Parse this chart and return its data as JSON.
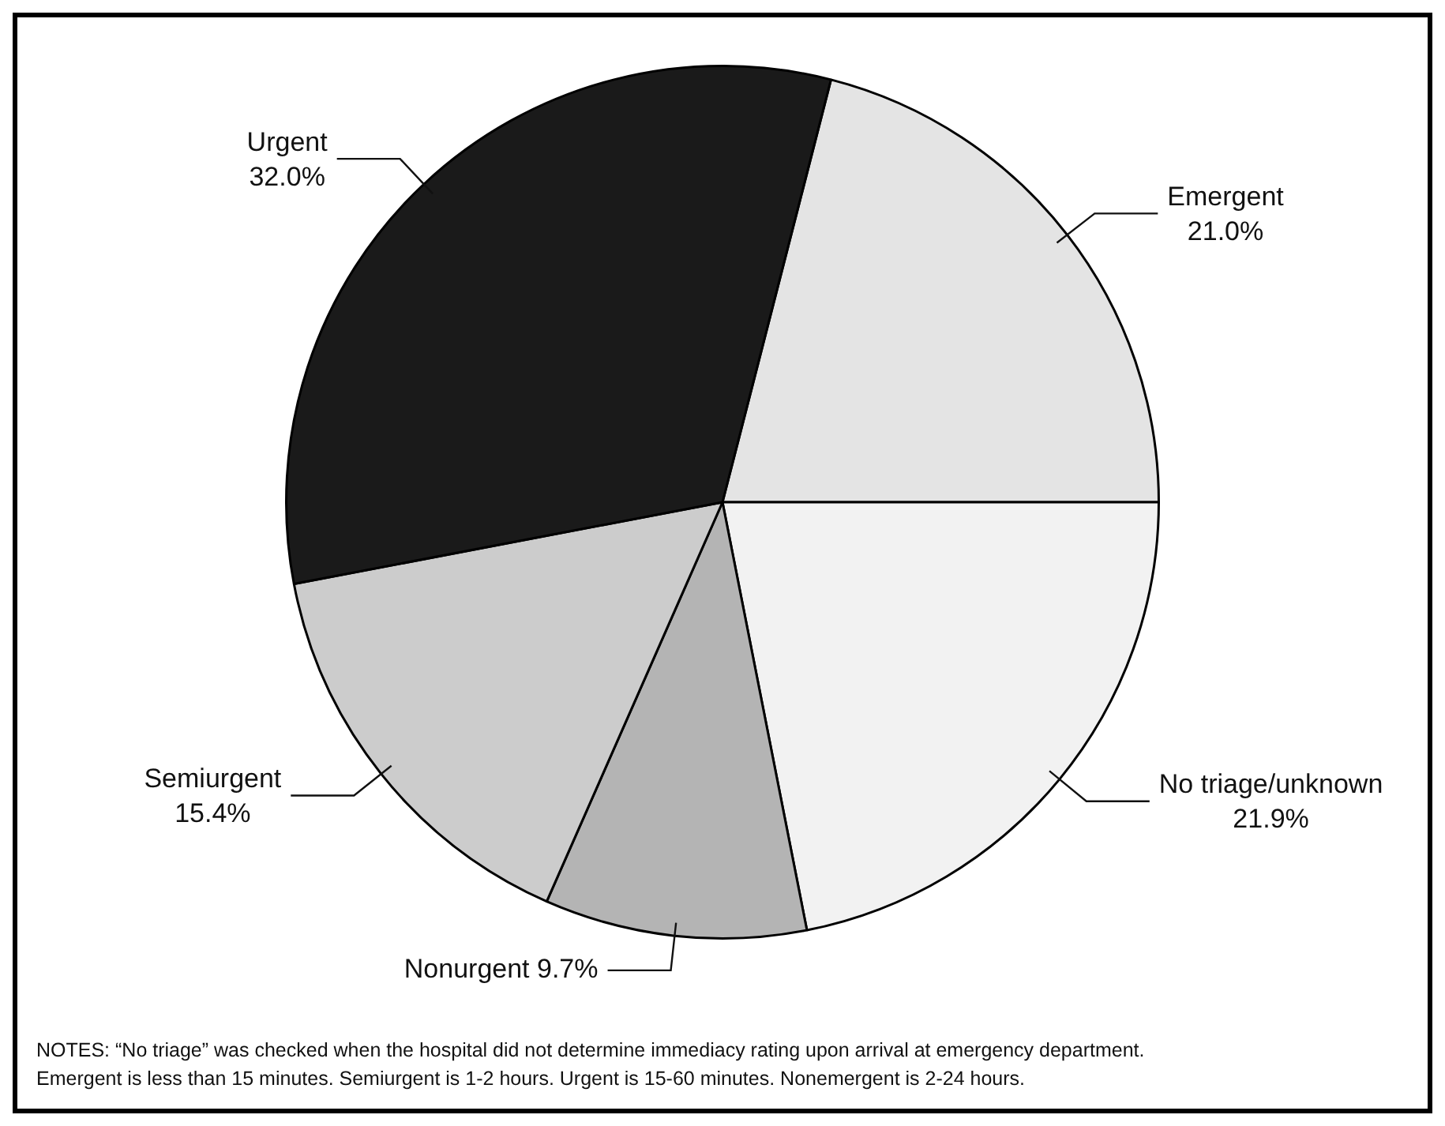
{
  "chart_data": {
    "type": "pie",
    "categories": [
      "Emergent",
      "No triage/unknown",
      "Nonurgent",
      "Semiurgent",
      "Urgent"
    ],
    "values": [
      21.0,
      21.9,
      9.7,
      15.4,
      32.0
    ],
    "value_labels": [
      "21.0%",
      "21.9%",
      "9.7%",
      "15.4%",
      "32.0%"
    ],
    "colors": [
      "#e4e4e4",
      "#f2f2f2",
      "#b4b4b4",
      "#cccccc",
      "#1a1a1a"
    ],
    "legend": false,
    "annotations": [
      "NOTES: “No triage” was checked when the hospital did not determine immediacy rating upon arrival  at emergency department.",
      "Emergent is less than 15 minutes. Semiurgent is 1-2 hours. Urgent is 15-60 minutes. Nonemergent is 2-24 hours."
    ]
  }
}
